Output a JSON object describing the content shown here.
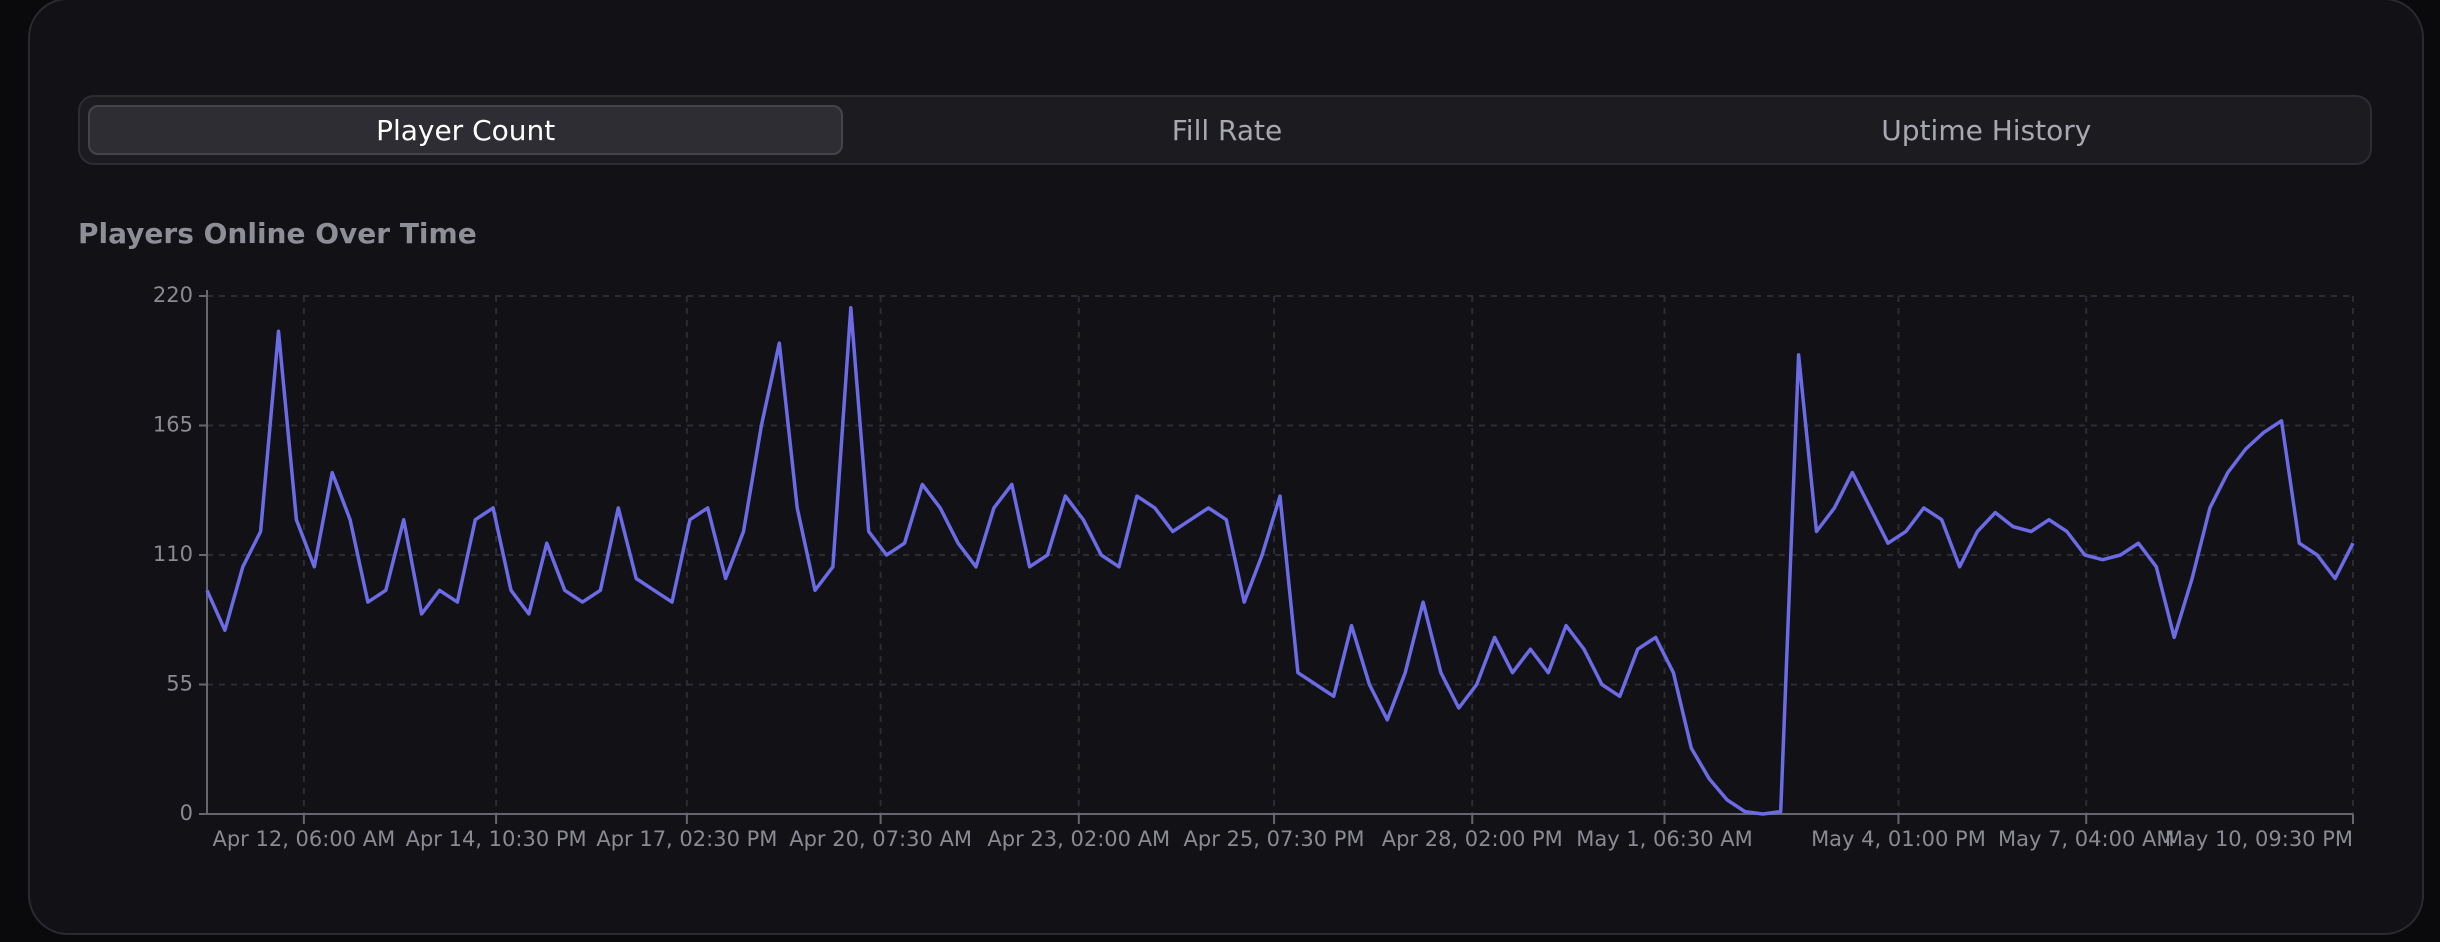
{
  "tabs": [
    "Player Count",
    "Fill Rate",
    "Uptime History"
  ],
  "chart_data": {
    "type": "line",
    "title": "Players Online Over Time",
    "x": [
      "Apr 10, 09:30 PM",
      "Apr 11, 03:30 AM",
      "Apr 11, 09:30 AM",
      "Apr 11, 03:30 PM",
      "Apr 11, 09:30 PM",
      "Apr 12, 03:30 AM",
      "Apr 12, 09:30 AM",
      "Apr 12, 03:30 PM",
      "Apr 12, 09:30 PM",
      "Apr 13, 03:30 AM",
      "Apr 13, 09:30 AM",
      "Apr 13, 03:30 PM",
      "Apr 13, 09:30 PM",
      "Apr 14, 03:30 AM",
      "Apr 14, 09:30 AM",
      "Apr 14, 03:30 PM",
      "Apr 14, 09:30 PM",
      "Apr 15, 03:30 AM",
      "Apr 15, 09:30 AM",
      "Apr 15, 03:30 PM",
      "Apr 15, 09:30 PM",
      "Apr 16, 03:30 AM",
      "Apr 16, 09:30 AM",
      "Apr 16, 03:30 PM",
      "Apr 16, 09:30 PM",
      "Apr 17, 03:30 AM",
      "Apr 17, 09:30 AM",
      "Apr 17, 03:30 PM",
      "Apr 17, 09:30 PM",
      "Apr 18, 03:30 AM",
      "Apr 18, 09:30 AM",
      "Apr 18, 03:30 PM",
      "Apr 18, 09:30 PM",
      "Apr 19, 03:30 AM",
      "Apr 19, 09:30 AM",
      "Apr 19, 03:30 PM",
      "Apr 19, 09:30 PM",
      "Apr 20, 03:30 AM",
      "Apr 20, 09:30 AM",
      "Apr 20, 03:30 PM",
      "Apr 20, 09:30 PM",
      "Apr 21, 03:30 AM",
      "Apr 21, 09:30 AM",
      "Apr 21, 03:30 PM",
      "Apr 21, 09:30 PM",
      "Apr 22, 03:30 AM",
      "Apr 22, 09:30 AM",
      "Apr 22, 03:30 PM",
      "Apr 22, 09:30 PM",
      "Apr 23, 03:30 AM",
      "Apr 23, 09:30 AM",
      "Apr 23, 03:30 PM",
      "Apr 23, 09:30 PM",
      "Apr 24, 03:30 AM",
      "Apr 24, 09:30 AM",
      "Apr 24, 03:30 PM",
      "Apr 24, 09:30 PM",
      "Apr 25, 03:30 AM",
      "Apr 25, 09:30 AM",
      "Apr 25, 03:30 PM",
      "Apr 25, 09:30 PM",
      "Apr 26, 03:30 AM",
      "Apr 26, 09:30 AM",
      "Apr 26, 03:30 PM",
      "Apr 26, 09:30 PM",
      "Apr 27, 03:30 AM",
      "Apr 27, 09:30 AM",
      "Apr 27, 03:30 PM",
      "Apr 27, 09:30 PM",
      "Apr 28, 03:30 AM",
      "Apr 28, 09:30 AM",
      "Apr 28, 03:30 PM",
      "Apr 28, 09:30 PM",
      "Apr 29, 03:30 AM",
      "Apr 29, 09:30 AM",
      "Apr 29, 03:30 PM",
      "Apr 29, 09:30 PM",
      "Apr 30, 03:30 AM",
      "Apr 30, 09:30 AM",
      "Apr 30, 03:30 PM",
      "Apr 30, 09:30 PM",
      "May 1, 03:30 AM",
      "May 1, 09:30 AM",
      "May 1, 03:30 PM",
      "May 1, 09:30 PM",
      "May 2, 03:30 AM",
      "May 2, 09:30 AM",
      "May 2, 03:30 PM",
      "May 2, 09:30 PM",
      "May 3, 03:30 AM",
      "May 3, 09:30 AM",
      "May 3, 03:30 PM",
      "May 3, 09:30 PM",
      "May 4, 03:30 AM",
      "May 4, 09:30 AM",
      "May 4, 03:30 PM",
      "May 4, 09:30 PM",
      "May 5, 03:30 AM",
      "May 5, 09:30 AM",
      "May 5, 03:30 PM",
      "May 5, 09:30 PM",
      "May 6, 03:30 AM",
      "May 6, 09:30 AM",
      "May 6, 03:30 PM",
      "May 6, 09:30 PM",
      "May 7, 03:30 AM",
      "May 7, 09:30 AM",
      "May 7, 03:30 PM",
      "May 7, 09:30 PM",
      "May 8, 03:30 AM",
      "May 8, 09:30 AM",
      "May 8, 03:30 PM",
      "May 8, 09:30 PM",
      "May 9, 03:30 AM",
      "May 9, 09:30 AM",
      "May 9, 03:30 PM",
      "May 9, 09:30 PM",
      "May 10, 03:30 AM",
      "May 10, 09:30 AM",
      "May 10, 03:30 PM",
      "May 10, 09:30 PM"
    ],
    "series": [
      {
        "name": "Players",
        "color": "#6b6be6",
        "values": [
          95,
          78,
          105,
          120,
          205,
          125,
          105,
          145,
          125,
          90,
          95,
          125,
          85,
          95,
          90,
          125,
          130,
          95,
          85,
          115,
          95,
          90,
          95,
          130,
          100,
          95,
          90,
          125,
          130,
          100,
          120,
          165,
          200,
          130,
          95,
          105,
          215,
          120,
          110,
          115,
          140,
          130,
          115,
          105,
          130,
          140,
          105,
          110,
          135,
          125,
          110,
          105,
          135,
          130,
          120,
          125,
          130,
          125,
          90,
          110,
          135,
          60,
          55,
          50,
          80,
          55,
          40,
          60,
          90,
          60,
          45,
          55,
          75,
          60,
          70,
          60,
          80,
          70,
          55,
          50,
          70,
          75,
          60,
          28,
          15,
          6,
          1,
          0,
          1,
          195,
          120,
          130,
          145,
          130,
          115,
          120,
          130,
          125,
          105,
          120,
          128,
          122,
          120,
          125,
          120,
          110,
          108,
          110,
          115,
          105,
          75,
          100,
          130,
          145,
          155,
          162,
          167,
          115,
          110,
          100,
          115
        ]
      }
    ],
    "xlim": [
      "Apr 10, 09:30 PM",
      "May 10, 09:30 PM"
    ],
    "xticks": [
      "Apr 12, 06:00 AM",
      "Apr 14, 10:30 PM",
      "Apr 17, 02:30 PM",
      "Apr 20, 07:30 AM",
      "Apr 23, 02:00 AM",
      "Apr 25, 07:30 PM",
      "Apr 28, 02:00 PM",
      "May 1, 06:30 AM",
      "May 4, 01:00 PM",
      "May 7, 04:00 AM",
      "May 10, 09:30 PM"
    ],
    "ylim": [
      0,
      220
    ],
    "yticks": [
      0,
      55,
      110,
      165,
      220
    ],
    "grid": true
  }
}
